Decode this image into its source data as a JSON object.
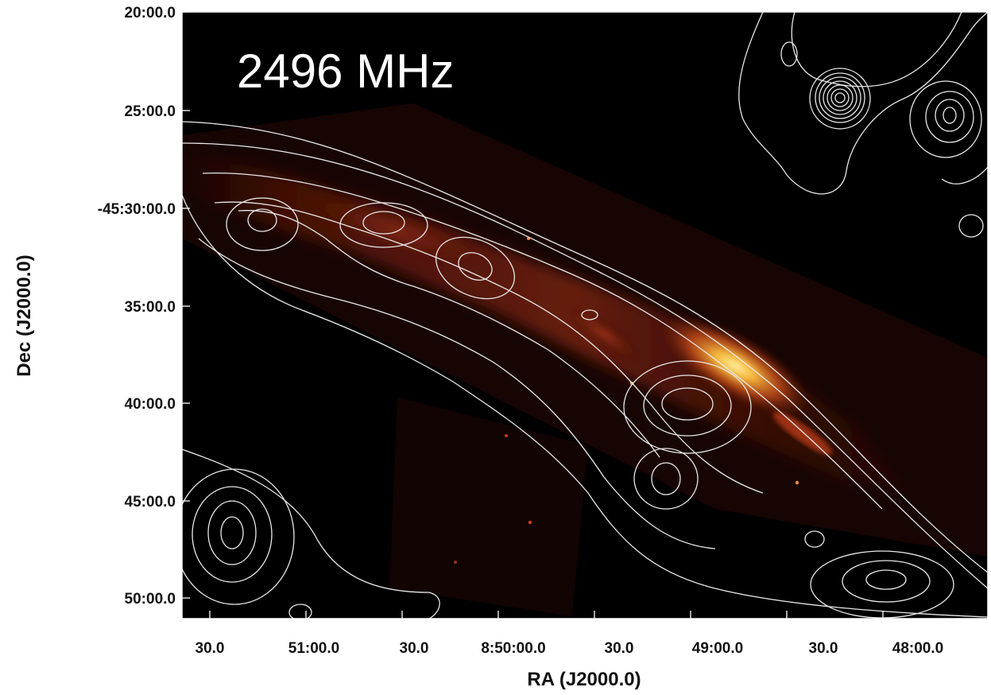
{
  "panel_label": "2496 MHz",
  "axes": {
    "x_title": "RA (J2000.0)",
    "y_title": "Dec (J2000.0)",
    "x_ticks": [
      "30.0",
      "51:00.0",
      "30.0",
      "8:50:00.0",
      "30.0",
      "49:00.0",
      "30.0",
      "48:00.0"
    ],
    "y_ticks": [
      "20:00.0",
      "25:00.0",
      "-45:30:00.0",
      "35:00.0",
      "40:00.0",
      "45:00.0",
      "50:00.0"
    ]
  },
  "colors": {
    "background": "#000000",
    "emission_core": "#ffd04a",
    "emission_mid": "#c8401a",
    "emission_faint": "#3a0d05",
    "contours": "#e8e8e8",
    "frame": "#ffffff"
  }
}
